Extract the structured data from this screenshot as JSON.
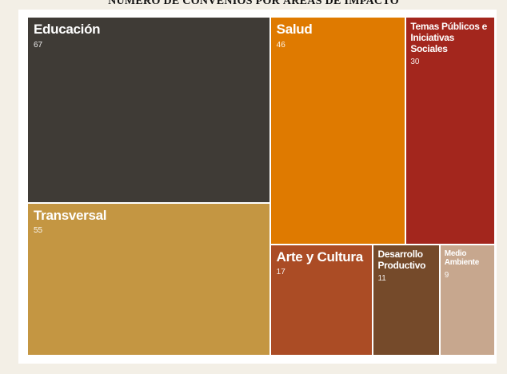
{
  "chart_data": {
    "type": "treemap",
    "title": "NÚMERO DE CONVENIOS POR ÁREAS DE IMPACTO",
    "items": [
      {
        "name": "Educación",
        "value": 67,
        "color": "#3f3b36"
      },
      {
        "name": "Transversal",
        "value": 55,
        "color": "#c49642"
      },
      {
        "name": "Salud",
        "value": 46,
        "color": "#df7a00"
      },
      {
        "name": "Temas Públicos e Iniciativas Sociales",
        "value": 30,
        "color": "#a3261d"
      },
      {
        "name": "Arte y Cultura",
        "value": 17,
        "color": "#ab4c25"
      },
      {
        "name": "Desarrollo Productivo",
        "value": 11,
        "color": "#754a2a"
      },
      {
        "name": "Medio Ambiente",
        "value": 9,
        "color": "#c7a78e"
      }
    ]
  }
}
